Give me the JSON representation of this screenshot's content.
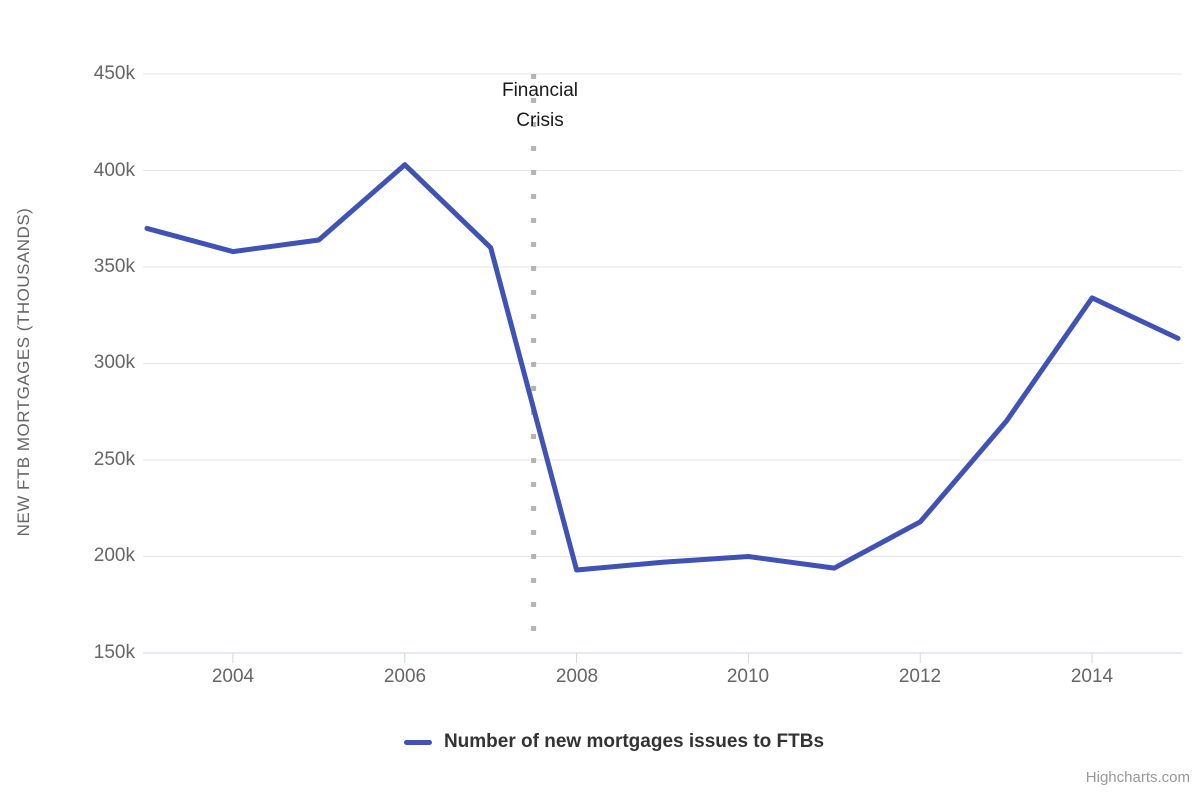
{
  "chart_data": {
    "type": "line",
    "title": "",
    "x": [
      2003,
      2004,
      2005,
      2006,
      2007,
      2008,
      2009,
      2010,
      2011,
      2012,
      2013,
      2014,
      2015
    ],
    "series": [
      {
        "name": "Number of new mortgages issues to FTBs",
        "values": [
          370,
          358,
          364,
          403,
          360,
          193,
          197,
          200,
          194,
          218,
          270,
          334,
          313
        ],
        "color": "#4052b4"
      }
    ],
    "xlabel": "",
    "ylabel": "NEW FTB MORTGAGES (THOUSANDS)",
    "xlim": [
      2003,
      2015
    ],
    "ylim": [
      150,
      450
    ],
    "unit": "thousands",
    "ytick_values": [
      150,
      200,
      250,
      300,
      350,
      400,
      450
    ],
    "ytick_labels": [
      "150k",
      "200k",
      "250k",
      "300k",
      "350k",
      "400k",
      "450k"
    ],
    "xtick_values": [
      2004,
      2006,
      2008,
      2010,
      2012,
      2014
    ],
    "xtick_labels": [
      "2004",
      "2006",
      "2008",
      "2010",
      "2012",
      "2014"
    ],
    "plot_line": {
      "value": 2007.5,
      "label": "Financial Crisis",
      "color": "#b3b3b3",
      "style": "dotted",
      "width": 5
    },
    "grid": true,
    "grid_color": "#e6e6e6",
    "axis_line_color": "#ccd6eb",
    "legend_position": "bottom"
  },
  "legend": {
    "label": "Number of new mortgages issues to FTBs"
  },
  "credits": {
    "label": "Highcharts.com"
  }
}
